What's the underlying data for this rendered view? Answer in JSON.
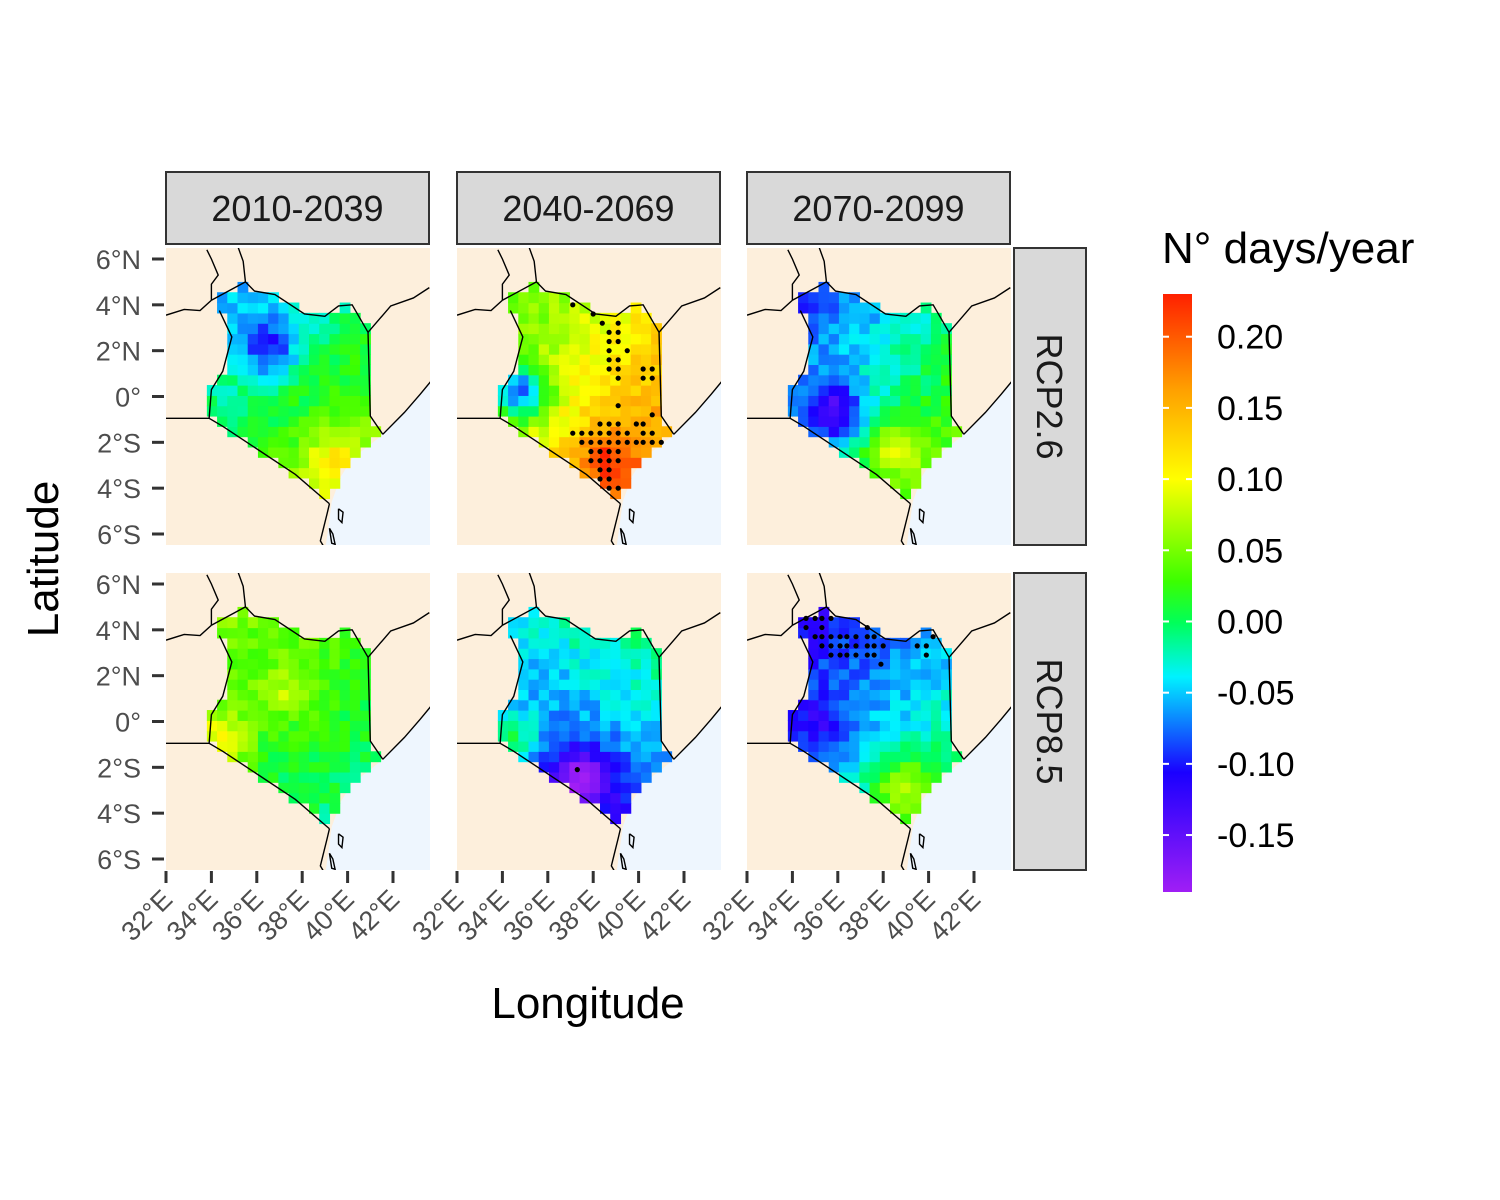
{
  "chart_data": {
    "type": "heatmap",
    "xlabel": "Longitude",
    "ylabel": "Latitude",
    "xlim": [
      32,
      43.6
    ],
    "ylim": [
      -6.5,
      6.5
    ],
    "x_ticks": [
      32,
      34,
      36,
      38,
      40,
      42
    ],
    "x_tick_labels": [
      "32°E",
      "34°E",
      "36°E",
      "38°E",
      "40°E",
      "42°E"
    ],
    "y_ticks": [
      6,
      4,
      2,
      0,
      -2,
      -4,
      -6
    ],
    "y_tick_labels": [
      "6°N",
      "4°N",
      "2°N",
      "0°",
      "2°S",
      "4°S",
      "6°S"
    ],
    "columns": [
      "2010-2039",
      "2040-2069",
      "2070-2099"
    ],
    "rows": [
      "RCP2.6",
      "RCP8.5"
    ],
    "legend": {
      "title": "N° days/year",
      "min": -0.19,
      "max": 0.23,
      "breaks": [
        0.2,
        0.15,
        0.1,
        0.05,
        0.0,
        -0.05,
        -0.1,
        -0.15
      ],
      "labels": [
        "0.20",
        "0.15",
        "0.10",
        "0.05",
        "0.00",
        "-0.05",
        "-0.10",
        "-0.15"
      ],
      "placement": "right"
    },
    "colors": {
      "land": "#fdefdc",
      "sea": "#eef6fe",
      "strip": "#d9d9d9",
      "border": "#000000"
    },
    "panels": [
      {
        "column": "2010-2039",
        "row": "RCP2.6",
        "mean": 0.01,
        "north": -0.04,
        "south": 0.05,
        "west": -0.02,
        "east": 0.03,
        "spots": [
          {
            "lon": 36.5,
            "lat": 2.2,
            "value": -0.08
          },
          {
            "lon": 39.3,
            "lat": -2.8,
            "value": 0.08
          }
        ],
        "stipple": []
      },
      {
        "column": "2040-2069",
        "row": "RCP2.6",
        "mean": 0.11,
        "north": 0.09,
        "south": 0.17,
        "west": 0.06,
        "east": 0.15,
        "spots": [
          {
            "lon": 34.8,
            "lat": 0.2,
            "value": -0.04
          },
          {
            "lon": 38.6,
            "lat": -2.8,
            "value": 0.19
          }
        ],
        "stipple": [
          [
            37.1,
            4.0
          ],
          [
            38.0,
            3.6
          ],
          [
            38.4,
            3.2
          ],
          [
            39.1,
            3.2
          ],
          [
            38.7,
            2.8
          ],
          [
            39.1,
            2.8
          ],
          [
            38.7,
            2.4
          ],
          [
            39.1,
            2.4
          ],
          [
            38.7,
            2.0
          ],
          [
            39.5,
            2.0
          ],
          [
            38.7,
            1.6
          ],
          [
            39.1,
            1.6
          ],
          [
            38.7,
            1.2
          ],
          [
            39.1,
            1.2
          ],
          [
            40.2,
            1.2
          ],
          [
            40.6,
            1.2
          ],
          [
            39.1,
            0.8
          ],
          [
            40.2,
            0.8
          ],
          [
            40.6,
            0.8
          ],
          [
            39.1,
            -0.4
          ],
          [
            40.6,
            -0.8
          ],
          [
            38.3,
            -1.2
          ],
          [
            38.7,
            -1.2
          ],
          [
            39.1,
            -1.2
          ],
          [
            39.9,
            -1.2
          ],
          [
            40.2,
            -1.2
          ],
          [
            37.1,
            -1.6
          ],
          [
            37.5,
            -1.6
          ],
          [
            37.9,
            -1.6
          ],
          [
            38.3,
            -1.6
          ],
          [
            38.7,
            -1.6
          ],
          [
            39.1,
            -1.6
          ],
          [
            39.5,
            -1.6
          ],
          [
            40.2,
            -1.6
          ],
          [
            40.6,
            -1.6
          ],
          [
            37.5,
            -2.0
          ],
          [
            37.9,
            -2.0
          ],
          [
            38.3,
            -2.0
          ],
          [
            38.7,
            -2.0
          ],
          [
            39.1,
            -2.0
          ],
          [
            39.5,
            -2.0
          ],
          [
            39.9,
            -2.0
          ],
          [
            40.2,
            -2.0
          ],
          [
            40.6,
            -2.0
          ],
          [
            41.0,
            -2.0
          ],
          [
            37.9,
            -2.4
          ],
          [
            38.3,
            -2.4
          ],
          [
            38.7,
            -2.4
          ],
          [
            39.1,
            -2.4
          ],
          [
            37.9,
            -2.8
          ],
          [
            38.3,
            -2.8
          ],
          [
            38.7,
            -2.8
          ],
          [
            39.1,
            -2.8
          ],
          [
            38.3,
            -3.2
          ],
          [
            38.7,
            -3.2
          ],
          [
            38.3,
            -3.6
          ],
          [
            38.7,
            -3.6
          ],
          [
            38.7,
            -4.0
          ],
          [
            39.1,
            -4.0
          ]
        ]
      },
      {
        "column": "2070-2099",
        "row": "RCP2.6",
        "mean": -0.02,
        "north": -0.04,
        "south": 0.04,
        "west": -0.07,
        "east": 0.02,
        "spots": [
          {
            "lon": 35.9,
            "lat": -0.7,
            "value": -0.13
          },
          {
            "lon": 38.5,
            "lat": -2.3,
            "value": 0.06
          }
        ],
        "stipple": []
      },
      {
        "column": "2010-2039",
        "row": "RCP8.5",
        "mean": 0.02,
        "north": 0.02,
        "south": -0.03,
        "west": 0.03,
        "east": 0.01,
        "spots": [
          {
            "lon": 34.4,
            "lat": -0.9,
            "value": 0.1
          },
          {
            "lon": 37.5,
            "lat": 1.3,
            "value": 0.07
          }
        ],
        "stipple": []
      },
      {
        "column": "2040-2069",
        "row": "RCP8.5",
        "mean": -0.06,
        "north": -0.03,
        "south": -0.13,
        "west": -0.08,
        "east": -0.04,
        "spots": [
          {
            "lon": 37.6,
            "lat": -2.5,
            "value": -0.17
          },
          {
            "lon": 34.3,
            "lat": -0.6,
            "value": 0.03
          }
        ],
        "stipple": [
          [
            37.3,
            -2.1
          ]
        ]
      },
      {
        "column": "2070-2099",
        "row": "RCP8.5",
        "mean": -0.05,
        "north": -0.07,
        "south": 0.02,
        "west": -0.09,
        "east": -0.03,
        "spots": [
          {
            "lon": 35.3,
            "lat": -0.2,
            "value": -0.1
          },
          {
            "lon": 38.9,
            "lat": -2.8,
            "value": 0.04
          }
        ],
        "stipple": [
          [
            34.6,
            4.5
          ],
          [
            35.0,
            4.5
          ],
          [
            35.3,
            4.5
          ],
          [
            35.7,
            4.5
          ],
          [
            34.6,
            4.1
          ],
          [
            35.3,
            4.1
          ],
          [
            37.3,
            4.1
          ],
          [
            35.0,
            3.7
          ],
          [
            35.3,
            3.7
          ],
          [
            35.7,
            3.7
          ],
          [
            36.1,
            3.7
          ],
          [
            36.4,
            3.7
          ],
          [
            36.8,
            3.7
          ],
          [
            37.3,
            3.7
          ],
          [
            37.6,
            3.7
          ],
          [
            40.2,
            3.7
          ],
          [
            35.3,
            3.3
          ],
          [
            35.7,
            3.3
          ],
          [
            36.1,
            3.3
          ],
          [
            36.4,
            3.3
          ],
          [
            36.8,
            3.3
          ],
          [
            37.3,
            3.3
          ],
          [
            37.6,
            3.3
          ],
          [
            38.0,
            3.3
          ],
          [
            39.5,
            3.3
          ],
          [
            39.9,
            3.3
          ],
          [
            35.7,
            2.9
          ],
          [
            36.1,
            2.9
          ],
          [
            36.4,
            2.9
          ],
          [
            36.8,
            2.9
          ],
          [
            37.3,
            2.9
          ],
          [
            37.6,
            2.9
          ],
          [
            39.9,
            2.9
          ],
          [
            37.9,
            2.5
          ]
        ]
      }
    ]
  }
}
